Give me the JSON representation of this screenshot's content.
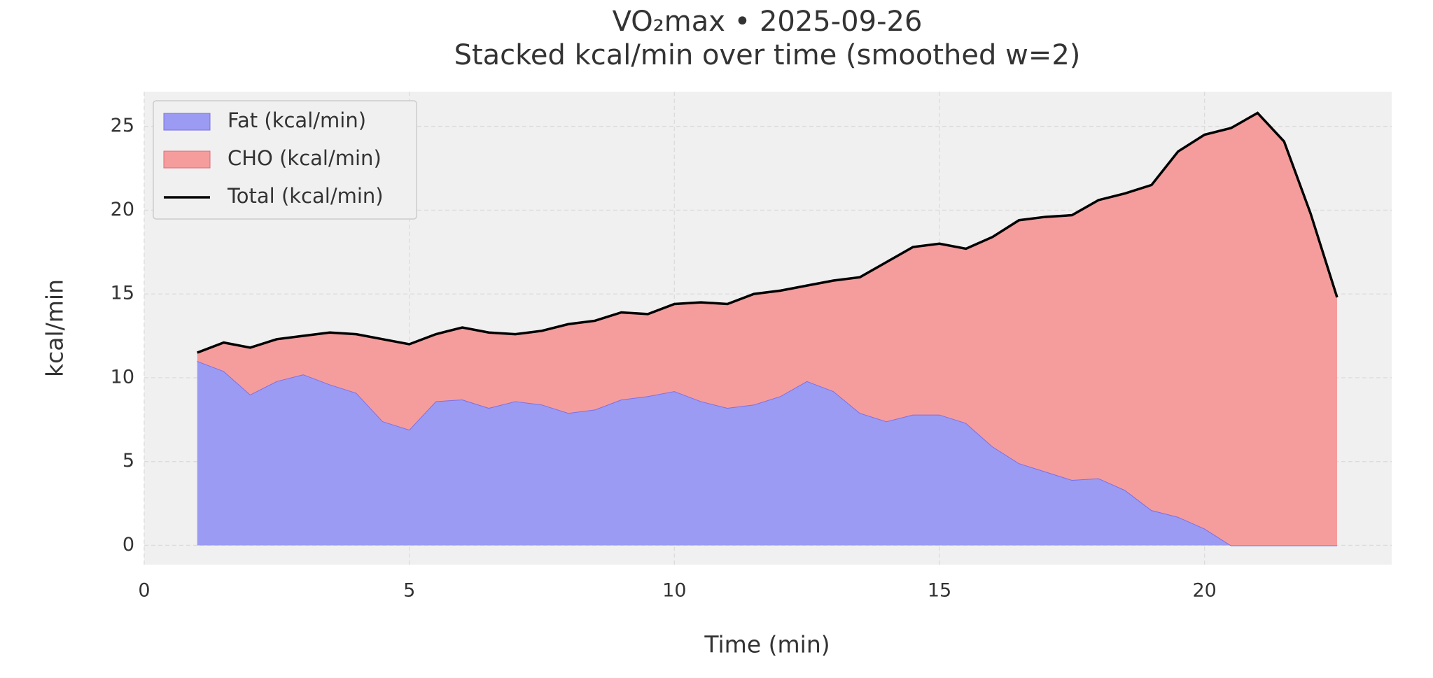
{
  "chart_data": {
    "type": "stacked_area",
    "title": "VO₂max • 2025-09-26",
    "subtitle": "Stacked kcal/min over time (smoothed w=2)",
    "x_label": "Time (min)",
    "y_label": "kcal/min",
    "x": [
      1,
      1.5,
      2,
      2.5,
      3,
      3.5,
      4,
      4.5,
      5,
      5.5,
      6,
      6.5,
      7,
      7.5,
      8,
      8.5,
      9,
      9.5,
      10,
      10.5,
      11,
      11.5,
      12,
      12.5,
      13,
      13.5,
      14,
      14.5,
      15,
      15.5,
      16,
      16.5,
      17,
      17.5,
      18,
      18.5,
      19,
      19.5,
      20,
      20.5,
      21,
      21.5,
      22,
      22.5
    ],
    "series": [
      {
        "name": "Fat (kcal/min)",
        "color": "#9b9bf3",
        "edge": "#7b6fe6",
        "kind": "area",
        "values": [
          11.0,
          10.4,
          9.0,
          9.8,
          10.2,
          9.6,
          9.1,
          7.4,
          6.9,
          8.6,
          8.7,
          8.2,
          8.6,
          8.4,
          7.9,
          8.1,
          8.7,
          8.9,
          9.2,
          8.6,
          8.2,
          8.4,
          8.9,
          9.8,
          9.2,
          7.9,
          7.4,
          7.8,
          7.8,
          7.3,
          5.9,
          4.9,
          4.4,
          3.9,
          4.0,
          3.3,
          2.1,
          1.7,
          1.0,
          0,
          0,
          0,
          0,
          0
        ]
      },
      {
        "name": "CHO (kcal/min)",
        "color": "#f59d9d",
        "edge": "#e06a7a",
        "kind": "area",
        "values": [
          0.5,
          1.7,
          2.8,
          2.5,
          2.3,
          3.1,
          3.5,
          4.9,
          5.1,
          4.0,
          4.3,
          4.5,
          4.0,
          4.4,
          5.3,
          5.3,
          5.2,
          4.9,
          5.2,
          5.9,
          6.2,
          6.6,
          6.3,
          5.7,
          6.6,
          8.1,
          9.5,
          10.0,
          10.2,
          10.4,
          12.5,
          14.5,
          15.2,
          15.8,
          16.6,
          17.7,
          19.4,
          21.8,
          23.5,
          24.9,
          25.8,
          24.1,
          19.8,
          14.8
        ]
      },
      {
        "name": "Total (kcal/min)",
        "color": "#000000",
        "kind": "line",
        "values": [
          11.5,
          12.1,
          11.8,
          12.3,
          12.5,
          12.7,
          12.6,
          12.3,
          12.0,
          12.6,
          13.0,
          12.7,
          12.6,
          12.8,
          13.2,
          13.4,
          13.9,
          13.8,
          14.4,
          14.5,
          14.4,
          15.0,
          15.2,
          15.5,
          15.8,
          16.0,
          16.9,
          17.8,
          18.0,
          17.7,
          18.4,
          19.4,
          19.6,
          19.7,
          20.6,
          21.0,
          21.5,
          23.5,
          24.5,
          24.9,
          25.8,
          24.1,
          19.8,
          14.8
        ]
      }
    ],
    "xlim": [
      0,
      23.53
    ],
    "ylim": [
      -1.15,
      27.07
    ],
    "xticks": [
      0,
      5,
      10,
      15,
      20
    ],
    "yticks": [
      0,
      5,
      10,
      15,
      20,
      25
    ],
    "grid": true,
    "legend": "upper left"
  }
}
